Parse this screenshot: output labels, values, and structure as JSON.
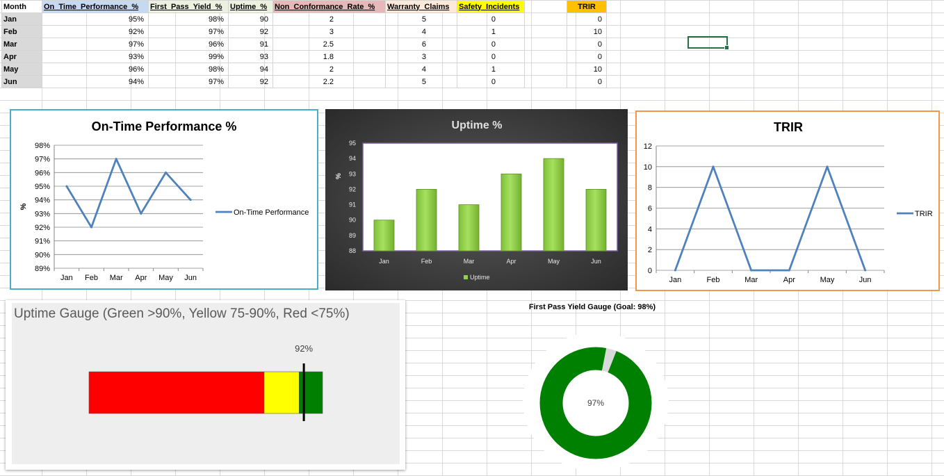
{
  "sheet": {
    "headers": [
      "Month",
      "On_Time_Performance_%",
      "First_Pass_Yield_%",
      "Uptime_%",
      "Non_Conformance_Rate_%",
      "Warranty_Claims",
      "Safety_Incidents",
      "TRIR"
    ],
    "rows": [
      {
        "month": "Jan",
        "otp": "95%",
        "fpy": "98%",
        "uptime": "90",
        "ncr": "2",
        "warranty": "5",
        "safety": "0",
        "trir": "0"
      },
      {
        "month": "Feb",
        "otp": "92%",
        "fpy": "97%",
        "uptime": "92",
        "ncr": "3",
        "warranty": "4",
        "safety": "1",
        "trir": "10"
      },
      {
        "month": "Mar",
        "otp": "97%",
        "fpy": "96%",
        "uptime": "91",
        "ncr": "2.5",
        "warranty": "6",
        "safety": "0",
        "trir": "0"
      },
      {
        "month": "Apr",
        "otp": "93%",
        "fpy": "99%",
        "uptime": "93",
        "ncr": "1.8",
        "warranty": "3",
        "safety": "0",
        "trir": "0"
      },
      {
        "month": "May",
        "otp": "96%",
        "fpy": "98%",
        "uptime": "94",
        "ncr": "2",
        "warranty": "4",
        "safety": "1",
        "trir": "10"
      },
      {
        "month": "Jun",
        "otp": "94%",
        "fpy": "97%",
        "uptime": "92",
        "ncr": "2.2",
        "warranty": "5",
        "safety": "0",
        "trir": "0"
      }
    ]
  },
  "chart_data": [
    {
      "id": "otp",
      "type": "line",
      "title": "On-Time Performance %",
      "ylabel": "%",
      "categories": [
        "Jan",
        "Feb",
        "Mar",
        "Apr",
        "May",
        "Jun"
      ],
      "series": [
        {
          "name": "On-Time Performance",
          "values": [
            95,
            92,
            97,
            93,
            96,
            94
          ]
        }
      ],
      "ylim": [
        89,
        98
      ],
      "yticks": [
        "89%",
        "90%",
        "91%",
        "92%",
        "93%",
        "94%",
        "95%",
        "96%",
        "97%",
        "98%"
      ],
      "color": "#4f81bd",
      "legend": "right"
    },
    {
      "id": "uptime",
      "type": "bar",
      "title": "Uptime %",
      "ylabel": "%",
      "categories": [
        "Jan",
        "Feb",
        "Mar",
        "Apr",
        "May",
        "Jun"
      ],
      "series": [
        {
          "name": "Uptime",
          "values": [
            90,
            92,
            91,
            93,
            94,
            92
          ]
        }
      ],
      "ylim": [
        88,
        95
      ],
      "yticks": [
        "88",
        "89",
        "90",
        "91",
        "92",
        "93",
        "94",
        "95"
      ],
      "color": "#92d050",
      "legend": "bottom"
    },
    {
      "id": "trir",
      "type": "line",
      "title": "TRIR",
      "categories": [
        "Jan",
        "Feb",
        "Mar",
        "Apr",
        "May",
        "Jun"
      ],
      "series": [
        {
          "name": "TRIR",
          "values": [
            0,
            10,
            0,
            0,
            10,
            0
          ]
        }
      ],
      "ylim": [
        0,
        12
      ],
      "yticks": [
        "0",
        "2",
        "4",
        "6",
        "8",
        "10",
        "12"
      ],
      "color": "#4f81bd",
      "legend": "right"
    },
    {
      "id": "uptime-gauge",
      "type": "gauge",
      "title": "Uptime Gauge (Green >90%, Yellow 75-90%, Red <75%)",
      "value": 92,
      "value_label": "92%",
      "range": [
        0,
        100
      ],
      "bands": [
        {
          "name": "Red",
          "from": 0,
          "to": 75,
          "color": "#ff0000"
        },
        {
          "name": "Yellow",
          "from": 75,
          "to": 90,
          "color": "#ffff00"
        },
        {
          "name": "Green",
          "from": 90,
          "to": 100,
          "color": "#008000"
        }
      ]
    },
    {
      "id": "fpy-gauge",
      "type": "pie",
      "title": "First Pass Yield Gauge (Goal: 98%)",
      "value": 97,
      "center_label": "97%",
      "slices": [
        {
          "name": "Yield",
          "value": 97,
          "color": "#008000"
        },
        {
          "name": "Remaining",
          "value": 3,
          "color": "#d9d9d9"
        }
      ]
    }
  ]
}
